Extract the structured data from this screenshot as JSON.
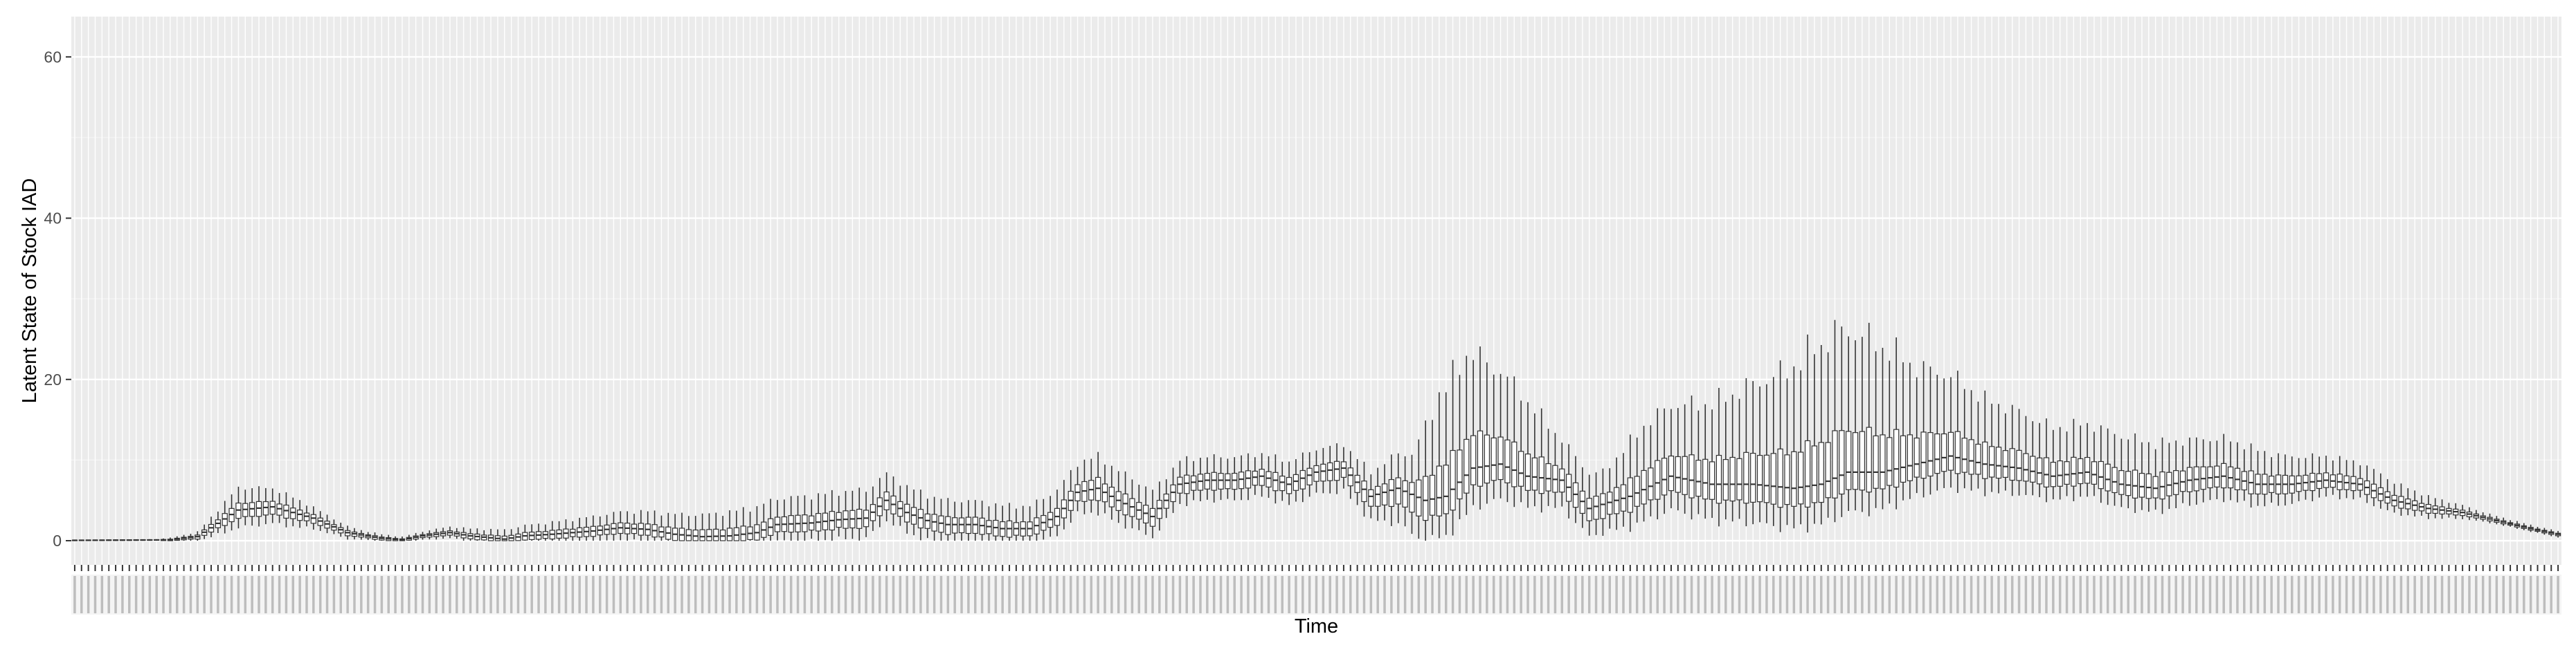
{
  "chart_data": {
    "type": "boxplot",
    "title": "",
    "xlabel": "Time",
    "ylabel": "Latent State of Stock IAD",
    "ylim": [
      -3,
      65
    ],
    "yticks": [
      0,
      20,
      40,
      60
    ],
    "ytick_labels": [
      "0",
      "20",
      "40",
      "60"
    ],
    "n_time_points": 365,
    "grid": true,
    "theme": "ggplot-grey",
    "colors": {
      "panel": "#ebebeb",
      "grid_major": "#ffffff",
      "grid_minor": "#f5f5f5",
      "box": "#333333",
      "fill": "#ffffff"
    },
    "median_profile": {
      "t": [
        0,
        14,
        18,
        24,
        29,
        35,
        40,
        45,
        48,
        51,
        55,
        58,
        63,
        66,
        70,
        76,
        80,
        84,
        88,
        92,
        96,
        100,
        103,
        108,
        112,
        116,
        119,
        122,
        125,
        128,
        132,
        136,
        140,
        144,
        147,
        150,
        153,
        158,
        162,
        166,
        170,
        174,
        178,
        182,
        186,
        190,
        194,
        198,
        201,
        205,
        209,
        213,
        218,
        222,
        228,
        234,
        240,
        246,
        252,
        256,
        260,
        265,
        270,
        275,
        280,
        285,
        290,
        295,
        300,
        305,
        310,
        315,
        320,
        325,
        330,
        335,
        340,
        345,
        350,
        355,
        360,
        364
      ],
      "median": [
        0.05,
        0.1,
        0.5,
        3.8,
        4.2,
        2.8,
        1.0,
        0.3,
        0.1,
        0.6,
        1.0,
        0.6,
        0.2,
        0.6,
        0.8,
        1.2,
        1.6,
        1.4,
        0.8,
        0.5,
        0.6,
        1.0,
        2.0,
        2.2,
        2.6,
        2.8,
        5.0,
        3.5,
        2.5,
        2.0,
        2.0,
        1.5,
        1.5,
        3.0,
        6.0,
        6.5,
        5.0,
        3.0,
        7.0,
        7.5,
        7.5,
        8.0,
        7.0,
        8.5,
        9.0,
        5.5,
        6.5,
        5.0,
        5.5,
        9.0,
        9.5,
        8.0,
        7.5,
        4.0,
        5.5,
        8.0,
        7.0,
        7.0,
        6.5,
        7.0,
        8.5,
        8.5,
        9.5,
        10.5,
        9.5,
        9.0,
        8.0,
        8.5,
        7.0,
        6.5,
        7.5,
        8.0,
        7.0,
        7.0,
        7.5,
        7.0,
        5.0,
        4.0,
        3.5,
        2.5,
        1.5,
        0.8
      ]
    },
    "spread_profile": {
      "t": [
        0,
        12,
        18,
        24,
        30,
        36,
        42,
        48,
        60,
        80,
        100,
        115,
        128,
        140,
        150,
        160,
        175,
        190,
        196,
        200,
        204,
        208,
        212,
        218,
        224,
        230,
        240,
        250,
        255,
        258,
        262,
        266,
        270,
        275,
        280,
        290,
        300,
        310,
        318,
        324,
        330,
        338,
        345,
        350,
        354,
        358,
        364
      ],
      "upper_whisker_excess": [
        0.05,
        0.1,
        0.6,
        2.8,
        2.2,
        1.2,
        0.6,
        0.4,
        1.0,
        2.0,
        3.2,
        3.5,
        3.0,
        2.8,
        4.0,
        3.0,
        2.8,
        3.0,
        5.0,
        13.0,
        15.0,
        12.0,
        10.0,
        5.0,
        4.0,
        8.0,
        10.0,
        14.0,
        17.0,
        18.0,
        17.0,
        15.0,
        12.0,
        10.0,
        8.0,
        6.0,
        6.0,
        5.0,
        4.5,
        3.5,
        3.0,
        2.5,
        1.5,
        0.9,
        0.6,
        0.5,
        0.4
      ],
      "lower_whisker_depth": [
        0.05,
        0.1,
        0.6,
        2.2,
        2.0,
        1.2,
        0.6,
        0.4,
        0.9,
        1.5,
        2.0,
        2.5,
        2.5,
        2.0,
        3.0,
        2.5,
        2.5,
        3.0,
        5.0,
        5.0,
        5.0,
        4.5,
        4.0,
        3.5,
        3.5,
        4.0,
        4.5,
        5.0,
        5.0,
        5.0,
        5.0,
        4.5,
        4.0,
        4.0,
        3.5,
        3.0,
        3.0,
        3.0,
        2.8,
        2.5,
        2.0,
        1.8,
        1.2,
        0.8,
        0.5,
        0.4,
        0.4
      ]
    }
  }
}
